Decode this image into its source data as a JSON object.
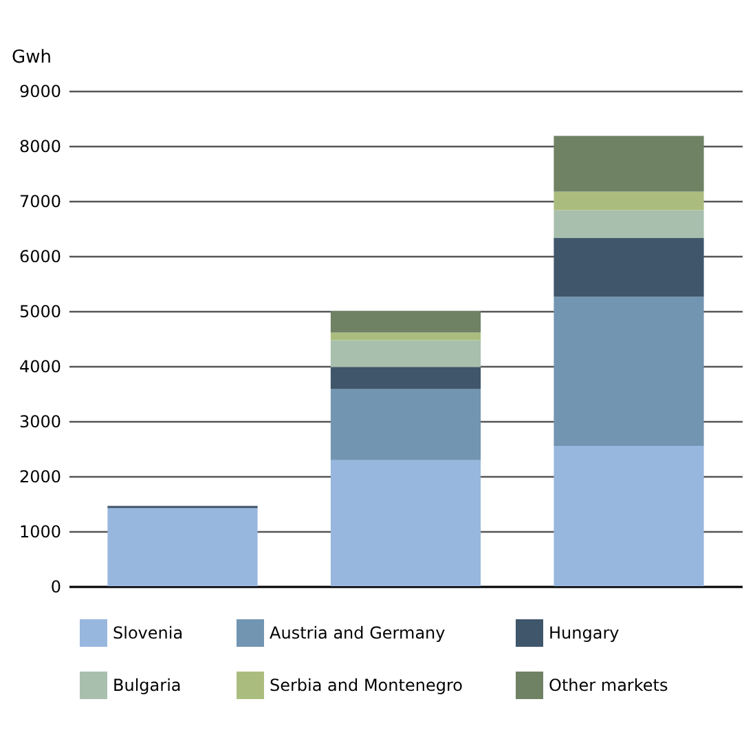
{
  "chart_data": {
    "type": "bar",
    "stacked": true,
    "ylabel": "Gwh",
    "categories": [
      null,
      null,
      null
    ],
    "series": [
      {
        "name": "Slovenia",
        "color": "#98b7df",
        "values": [
          1420,
          2290,
          2550
        ]
      },
      {
        "name": "Austria and Germany",
        "color": "#7295b2",
        "values": [
          null,
          1290,
          2710
        ]
      },
      {
        "name": "Hungary",
        "color": "#3f566b",
        "values": [
          40,
          400,
          1070
        ]
      },
      {
        "name": "Bulgaria",
        "color": "#a8bfae",
        "values": [
          null,
          490,
          500
        ]
      },
      {
        "name": "Serbia and Montenegro",
        "color": "#abbd7e",
        "values": [
          null,
          140,
          340
        ]
      },
      {
        "name": "Other markets",
        "color": "#6f8264",
        "values": [
          null,
          390,
          1010
        ]
      }
    ],
    "ylim": [
      0,
      9000
    ],
    "yticks": [
      0,
      1000,
      2000,
      3000,
      4000,
      5000,
      6000,
      7000,
      8000,
      9000
    ],
    "grid": "y",
    "legend": "bottom"
  }
}
